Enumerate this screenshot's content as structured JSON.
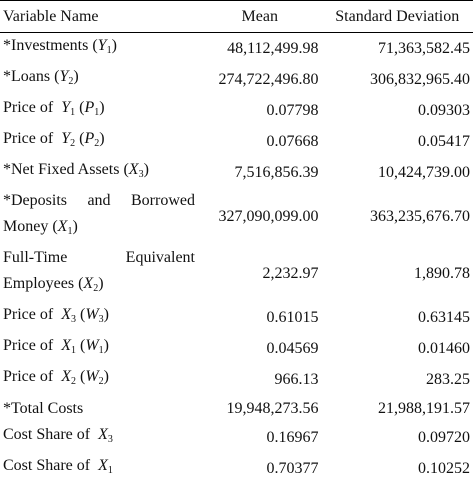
{
  "table": {
    "header": [
      "Variable Name",
      "Mean",
      "Standard Deviation"
    ],
    "rows": [
      {
        "label": [
          "*Investments (",
          {
            "i": "Y"
          },
          {
            "sub": "1"
          },
          ")"
        ],
        "mean": "48,112,499.98",
        "sd": "71,363,582.45"
      },
      {
        "label": [
          "*Loans (",
          {
            "i": "Y"
          },
          {
            "sub": "2"
          },
          ")"
        ],
        "mean": "274,722,496.80",
        "sd": "306,832,965.40"
      },
      {
        "label": [
          "Price of  ",
          {
            "i": "Y"
          },
          {
            "sub": "1"
          },
          " (",
          {
            "i": "P"
          },
          {
            "sub": "1"
          },
          ")"
        ],
        "mean": "0.07798",
        "sd": "0.09303"
      },
      {
        "label": [
          "Price of  ",
          {
            "i": "Y"
          },
          {
            "sub": "2"
          },
          " (",
          {
            "i": "P"
          },
          {
            "sub": "2"
          },
          ")"
        ],
        "mean": "0.07668",
        "sd": "0.05417"
      },
      {
        "label": [
          "*Net Fixed Assets (",
          {
            "i": "X"
          },
          {
            "sub": "3"
          },
          ")"
        ],
        "mean": "7,516,856.39",
        "sd": "10,424,739.00"
      },
      {
        "label": [
          "*Deposits and Borrowed Money (",
          {
            "i": "X"
          },
          {
            "sub": "1"
          },
          ")"
        ],
        "mean": "327,090,099.00",
        "sd": "363,235,676.70"
      },
      {
        "label": [
          "Full-Time Equivalent Employees (",
          {
            "i": "X"
          },
          {
            "sub": "2"
          },
          ")"
        ],
        "mean": "2,232.97",
        "sd": "1,890.78"
      },
      {
        "label": [
          "Price of  ",
          {
            "i": "X"
          },
          {
            "sub": "3"
          },
          " (",
          {
            "i": "W"
          },
          {
            "sub": "3"
          },
          ")"
        ],
        "mean": "0.61015",
        "sd": "0.63145"
      },
      {
        "label": [
          "Price of  ",
          {
            "i": "X"
          },
          {
            "sub": "1"
          },
          " (",
          {
            "i": "W"
          },
          {
            "sub": "1"
          },
          ")"
        ],
        "mean": "0.04569",
        "sd": "0.01460"
      },
      {
        "label": [
          "Price of  ",
          {
            "i": "X"
          },
          {
            "sub": "2"
          },
          " (",
          {
            "i": "W"
          },
          {
            "sub": "2"
          },
          ")"
        ],
        "mean": "966.13",
        "sd": "283.25"
      },
      {
        "label": [
          "*Total Costs"
        ],
        "mean": "19,948,273.56",
        "sd": "21,988,191.57"
      },
      {
        "label": [
          "Cost Share of  ",
          {
            "i": "X"
          },
          {
            "sub": "3"
          }
        ],
        "mean": "0.16967",
        "sd": "0.09720"
      },
      {
        "label": [
          "Cost Share of  ",
          {
            "i": "X"
          },
          {
            "sub": "1"
          }
        ],
        "mean": "0.70377",
        "sd": "0.10252"
      }
    ]
  }
}
